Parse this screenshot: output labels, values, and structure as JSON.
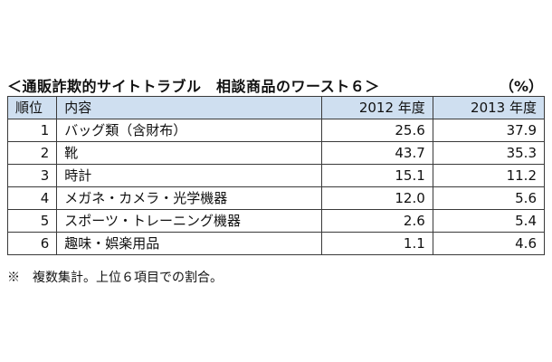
{
  "title": "＜通販詐欺的サイトトラブル　相談商品のワースト６＞",
  "unit": "（%）",
  "note": "※　複数集計。上位６項目での割合。",
  "chart_data": {
    "type": "table",
    "title": "＜通販詐欺的サイトトラブル　相談商品のワースト６＞",
    "unit": "%",
    "columns": [
      "順位",
      "内容",
      "2012 年度",
      "2013 年度"
    ],
    "rows": [
      {
        "rank": "1",
        "item": "バッグ類（含財布）",
        "y2012": 25.6,
        "y2013": 37.9
      },
      {
        "rank": "2",
        "item": "靴",
        "y2012": 43.7,
        "y2013": 35.3
      },
      {
        "rank": "3",
        "item": "時計",
        "y2012": 15.1,
        "y2013": 11.2
      },
      {
        "rank": "4",
        "item": "メガネ・カメラ・光学機器",
        "y2012": 12.0,
        "y2013": 5.6
      },
      {
        "rank": "5",
        "item": "スポーツ・トレーニング機器",
        "y2012": 2.6,
        "y2013": 5.4
      },
      {
        "rank": "6",
        "item": "趣味・娯楽用品",
        "y2012": 1.1,
        "y2013": 4.6
      }
    ]
  }
}
